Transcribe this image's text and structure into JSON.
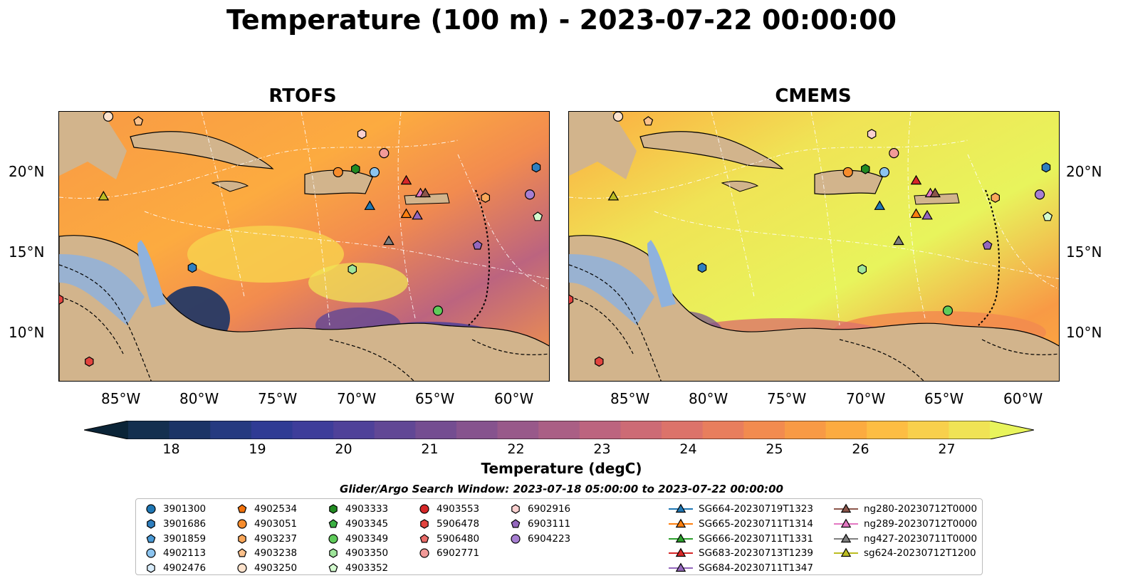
{
  "title": "Temperature (100 m) - 2023-07-22 00:00:00",
  "panels": [
    {
      "title": "RTOFS"
    },
    {
      "title": "CMEMS"
    }
  ],
  "lat_ticks": [
    "20°N",
    "15°N",
    "10°N"
  ],
  "lon_ticks": [
    "85°W",
    "80°W",
    "75°W",
    "70°W",
    "65°W",
    "60°W"
  ],
  "colorbar": {
    "label": "Temperature (degC)",
    "ticks": [
      "18",
      "19",
      "20",
      "21",
      "22",
      "23",
      "24",
      "25",
      "26",
      "27"
    ],
    "range": [
      17.5,
      27.5
    ],
    "colors": [
      "#0b2437",
      "#14304f",
      "#1b3466",
      "#253a80",
      "#2f3b94",
      "#3e3d9a",
      "#4f4199",
      "#614795",
      "#744d91",
      "#86538e",
      "#98598a",
      "#aa5f85",
      "#bc647f",
      "#cd6b75",
      "#dc736a",
      "#e87e5d",
      "#f28b4f",
      "#f89a45",
      "#fcab40",
      "#fdbd43",
      "#f8d04c",
      "#f0e355",
      "#e8f45c"
    ]
  },
  "search_window": "Glider/Argo Search Window: 2023-07-18 05:00:00 to 2023-07-22 00:00:00",
  "legend": [
    {
      "label": "3901300",
      "marker": "circle",
      "color": "#1f77b4"
    },
    {
      "label": "3901686",
      "marker": "hexagon",
      "color": "#2f7fbf"
    },
    {
      "label": "3901859",
      "marker": "pentagon",
      "color": "#4a9ad6"
    },
    {
      "label": "4902113",
      "marker": "circle",
      "color": "#8cc4ef"
    },
    {
      "label": "4902476",
      "marker": "hexagon",
      "color": "#d8ecfb"
    },
    {
      "label": "4902534",
      "marker": "pentagon",
      "color": "#f2720c"
    },
    {
      "label": "4903051",
      "marker": "circle",
      "color": "#f78c2c"
    },
    {
      "label": "4903237",
      "marker": "hexagon",
      "color": "#f9a75a"
    },
    {
      "label": "4903238",
      "marker": "pentagon",
      "color": "#fbc08a"
    },
    {
      "label": "4903250",
      "marker": "circle",
      "color": "#fde2cc"
    },
    {
      "label": "4903333",
      "marker": "hexagon",
      "color": "#228b22"
    },
    {
      "label": "4903345",
      "marker": "pentagon",
      "color": "#3cb043"
    },
    {
      "label": "4903349",
      "marker": "circle",
      "color": "#5fcb5a"
    },
    {
      "label": "4903350",
      "marker": "hexagon",
      "color": "#9ee59a"
    },
    {
      "label": "4903352",
      "marker": "pentagon",
      "color": "#d4fbcf"
    },
    {
      "label": "4903553",
      "marker": "circle",
      "color": "#d62728"
    },
    {
      "label": "5906478",
      "marker": "hexagon",
      "color": "#e2443f"
    },
    {
      "label": "5906480",
      "marker": "pentagon",
      "color": "#ea6b68"
    },
    {
      "label": "6902771",
      "marker": "circle",
      "color": "#f29a98"
    },
    {
      "label": "6902916",
      "marker": "hexagon",
      "color": "#fad0cf"
    },
    {
      "label": "6903111",
      "marker": "pentagon",
      "color": "#9467bd"
    },
    {
      "label": "6904223",
      "marker": "circle",
      "color": "#a77fd2"
    },
    {
      "label": "SG664-20230719T1323",
      "marker": "triangle-line",
      "color": "#1f77b4"
    },
    {
      "label": "SG665-20230711T1314",
      "marker": "triangle-line",
      "color": "#ff7f0e"
    },
    {
      "label": "SG666-20230711T1331",
      "marker": "triangle-line",
      "color": "#2ca02c"
    },
    {
      "label": "SG683-20230713T1239",
      "marker": "triangle-line",
      "color": "#d62728"
    },
    {
      "label": "SG684-20230711T1347",
      "marker": "triangle-line",
      "color": "#9467bd"
    },
    {
      "label": "ng280-20230712T0000",
      "marker": "triangle-line",
      "color": "#8c564b"
    },
    {
      "label": "ng289-20230712T0000",
      "marker": "triangle-line",
      "color": "#e377c2"
    },
    {
      "label": "ng427-20230711T0000",
      "marker": "triangle-line",
      "color": "#7f7f7f"
    },
    {
      "label": "sg624-20230712T1200",
      "marker": "triangle-line",
      "color": "#bcbd22"
    }
  ],
  "map_extent": {
    "lon": [
      -89,
      -58
    ],
    "lat": [
      7,
      24
    ]
  },
  "markers": [
    {
      "lon": -86.2,
      "lat": 18.7,
      "marker": "triangle",
      "color": "#bcbd22"
    },
    {
      "lon": -80.6,
      "lat": 14.2,
      "marker": "hexagon",
      "color": "#2f7fbf"
    },
    {
      "lon": -89.0,
      "lat": 12.2,
      "marker": "hexagon",
      "color": "#e2443f"
    },
    {
      "lon": -87.1,
      "lat": 8.3,
      "marker": "hexagon",
      "color": "#e2443f"
    },
    {
      "lon": -84.0,
      "lat": 23.4,
      "marker": "pentagon",
      "color": "#fbc08a"
    },
    {
      "lon": -85.9,
      "lat": 23.7,
      "marker": "circle",
      "color": "#fde2cc"
    },
    {
      "lon": -71.4,
      "lat": 20.2,
      "marker": "circle",
      "color": "#f78c2c"
    },
    {
      "lon": -70.3,
      "lat": 20.4,
      "marker": "hexagon",
      "color": "#228b22"
    },
    {
      "lon": -69.9,
      "lat": 22.6,
      "marker": "hexagon",
      "color": "#fad0cf"
    },
    {
      "lon": -68.5,
      "lat": 21.4,
      "marker": "circle",
      "color": "#f29a98"
    },
    {
      "lon": -69.1,
      "lat": 20.2,
      "marker": "circle",
      "color": "#8cc4ef"
    },
    {
      "lon": -67.1,
      "lat": 19.7,
      "marker": "triangle",
      "color": "#d62728"
    },
    {
      "lon": -66.2,
      "lat": 18.9,
      "marker": "triangle",
      "color": "#e377c2"
    },
    {
      "lon": -65.9,
      "lat": 18.9,
      "marker": "triangle",
      "color": "#8c564b"
    },
    {
      "lon": -69.4,
      "lat": 18.1,
      "marker": "triangle",
      "color": "#1f77b4"
    },
    {
      "lon": -67.1,
      "lat": 17.6,
      "marker": "triangle",
      "color": "#ff7f0e"
    },
    {
      "lon": -66.4,
      "lat": 17.5,
      "marker": "triangle",
      "color": "#9467bd"
    },
    {
      "lon": -68.2,
      "lat": 15.9,
      "marker": "triangle",
      "color": "#7f7f7f"
    },
    {
      "lon": -62.1,
      "lat": 18.6,
      "marker": "hexagon",
      "color": "#f9a75a"
    },
    {
      "lon": -59.3,
      "lat": 18.8,
      "marker": "circle",
      "color": "#a77fd2"
    },
    {
      "lon": -58.9,
      "lat": 20.5,
      "marker": "hexagon",
      "color": "#2f7fbf"
    },
    {
      "lon": -58.8,
      "lat": 17.4,
      "marker": "pentagon",
      "color": "#d4fbcf"
    },
    {
      "lon": -62.6,
      "lat": 15.6,
      "marker": "pentagon",
      "color": "#9467bd"
    },
    {
      "lon": -70.5,
      "lat": 14.1,
      "marker": "hexagon",
      "color": "#9ee59a"
    },
    {
      "lon": -65.1,
      "lat": 11.5,
      "marker": "circle",
      "color": "#5fcb5a"
    }
  ]
}
